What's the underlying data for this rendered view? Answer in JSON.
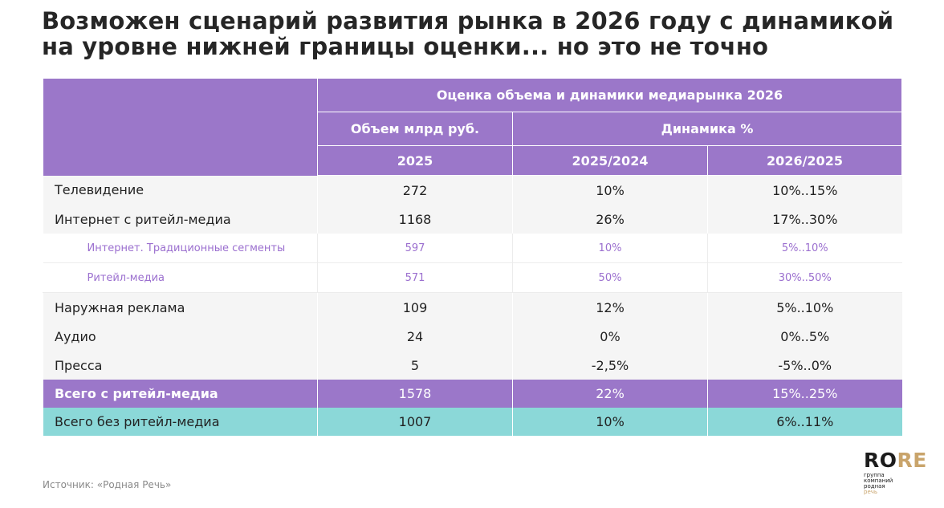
{
  "title": {
    "line1": "Возможен сценарий развития рынка в 2026 году с динамикой",
    "line2": "на уровне нижней границы оценки... но это не точно"
  },
  "table": {
    "header": {
      "group": "Оценка объема и динамики медиарынка 2026",
      "volume": "Объем млрд руб.",
      "dynamics": "Динамика %",
      "year": "2025",
      "period1": "2025/2024",
      "period2": "2026/2025"
    },
    "rows": [
      {
        "label": "Телевидение",
        "volume": "272",
        "d1": "10%",
        "d2": "10%..15%"
      },
      {
        "label": "Интернет с ритейл-медиа",
        "volume": "1168",
        "d1": "26%",
        "d2": "17%..30%"
      },
      {
        "label": "Интернет. Традиционные сегменты",
        "volume": "597",
        "d1": "10%",
        "d2": "5%..10%"
      },
      {
        "label": "Ритейл-медиа",
        "volume": "571",
        "d1": "50%",
        "d2": "30%..50%"
      },
      {
        "label": "Наружная реклама",
        "volume": "109",
        "d1": "12%",
        "d2": "5%..10%"
      },
      {
        "label": "Аудио",
        "volume": "24",
        "d1": "0%",
        "d2": "0%..5%"
      },
      {
        "label": "Пресса",
        "volume": "5",
        "d1": "-2,5%",
        "d2": "-5%..0%"
      },
      {
        "label": "Всего с ритейл-медиа",
        "volume": "1578",
        "d1": "22%",
        "d2": "15%..25%"
      },
      {
        "label": "Всего без ритейл-медиа",
        "volume": "1007",
        "d1": "10%",
        "d2": "6%..11%"
      }
    ]
  },
  "source": "Источник: «Родная Речь»",
  "logo": {
    "ro": "RO",
    "re": "RE",
    "sub1": "группа",
    "sub2": "компаний",
    "sub3": "родная",
    "sub4": "речь"
  },
  "colors": {
    "header": "#9b77c9",
    "total_retail": "#9b77c9",
    "total_no_retail": "#8bd8d8",
    "sub_text": "#9b6fcf",
    "logo_gold": "#c9a46b"
  }
}
